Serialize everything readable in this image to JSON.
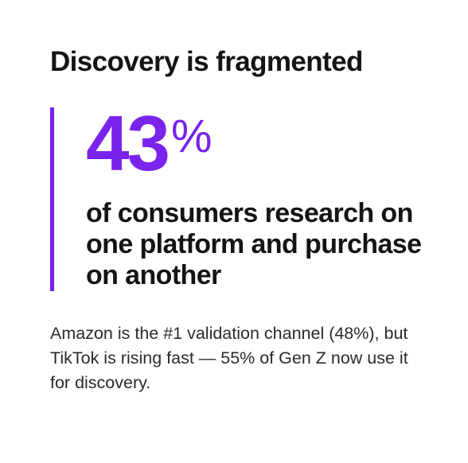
{
  "title": "Discovery is fragmented",
  "stat": {
    "number": "43",
    "unit": "%",
    "caption": "of consumers research on one platform and purchase on another"
  },
  "body": "Amazon is the #1 validation channel (48%), but TikTok is rising fast — 55% of Gen Z now use it for discovery.",
  "colors": {
    "accent": "#7a23ec",
    "text": "#141414"
  }
}
